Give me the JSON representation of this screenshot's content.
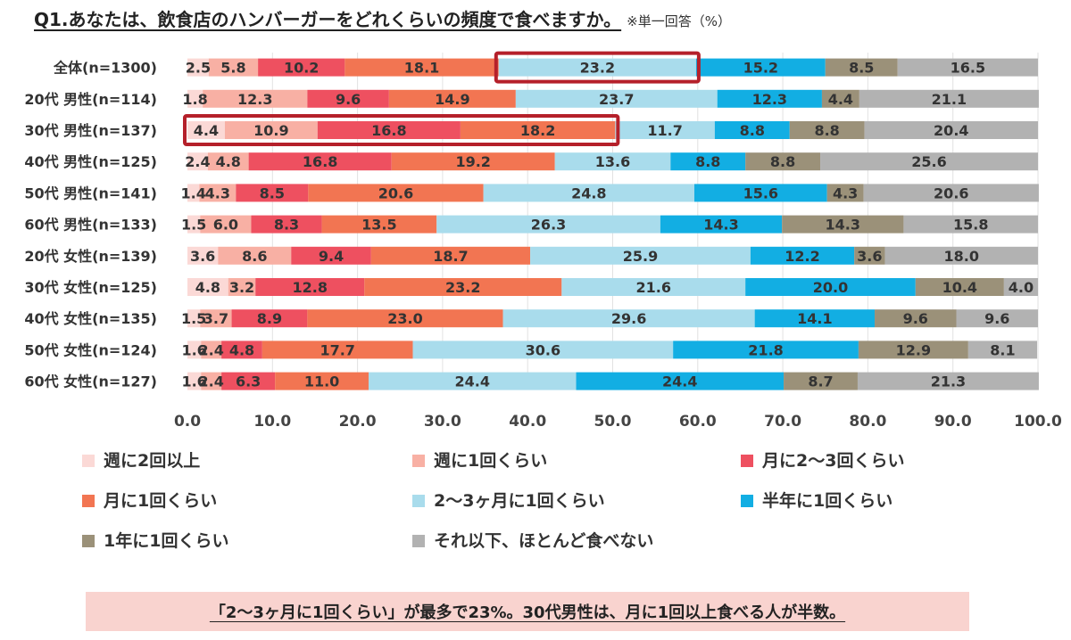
{
  "title": "Q1.あなたは、飲食店のハンバーガーをどれくらいの頻度で食べますか。",
  "note": "※単一回答（%）",
  "callout": "「2〜3ヶ月に1回くらい」が最多で23%。30代男性は、月に1回以上食べる人が半数。",
  "chart_data": {
    "type": "bar",
    "orientation": "horizontal",
    "stacked": true,
    "xlim": [
      0,
      100
    ],
    "xticks": [
      0,
      10,
      20,
      30,
      40,
      50,
      60,
      70,
      80,
      90,
      100
    ],
    "tick_labels": [
      "0.0",
      "10.0",
      "20.0",
      "30.0",
      "40.0",
      "50.0",
      "60.0",
      "70.0",
      "80.0",
      "90.0",
      "100.0"
    ],
    "categories": [
      "全体(n=1300)",
      "20代 男性(n=114)",
      "30代 男性(n=137)",
      "40代 男性(n=125)",
      "50代 男性(n=141)",
      "60代 男性(n=133)",
      "20代 女性(n=139)",
      "30代 女性(n=125)",
      "40代 女性(n=135)",
      "50代 女性(n=124)",
      "60代 女性(n=127)"
    ],
    "series": [
      {
        "name": "週に2回以上",
        "color": "#fbd9d6",
        "values": [
          2.5,
          1.8,
          4.4,
          2.4,
          1.4,
          1.5,
          3.6,
          4.8,
          1.5,
          1.6,
          1.6
        ]
      },
      {
        "name": "週に1回くらい",
        "color": "#f8b0a4",
        "values": [
          5.8,
          12.3,
          10.9,
          4.8,
          4.3,
          6.0,
          8.6,
          3.2,
          3.7,
          2.4,
          2.4
        ]
      },
      {
        "name": "月に2〜3回くらい",
        "color": "#ee5060",
        "values": [
          10.2,
          9.6,
          16.8,
          16.8,
          8.5,
          8.3,
          9.4,
          12.8,
          8.9,
          4.8,
          6.3
        ]
      },
      {
        "name": "月に1回くらい",
        "color": "#f27552",
        "values": [
          18.1,
          14.9,
          18.2,
          19.2,
          20.6,
          13.5,
          18.7,
          23.2,
          23.0,
          17.7,
          11.0
        ]
      },
      {
        "name": "2〜3ヶ月に1回くらい",
        "color": "#a9dcec",
        "values": [
          23.2,
          23.7,
          11.7,
          13.6,
          24.8,
          26.3,
          25.9,
          21.6,
          29.6,
          30.6,
          24.4
        ]
      },
      {
        "name": "半年に1回くらい",
        "color": "#12aee3",
        "values": [
          15.2,
          12.3,
          8.8,
          8.8,
          15.6,
          14.3,
          12.2,
          20.0,
          14.1,
          21.8,
          24.4
        ]
      },
      {
        "name": "1年に1回くらい",
        "color": "#9b9179",
        "values": [
          8.5,
          4.4,
          8.8,
          8.8,
          4.3,
          14.3,
          3.6,
          10.4,
          9.6,
          12.9,
          8.7
        ]
      },
      {
        "name": "それ以下、ほとんど食べない",
        "color": "#b2b2b2",
        "values": [
          16.5,
          21.1,
          20.4,
          25.6,
          20.6,
          15.8,
          18.0,
          4.0,
          9.6,
          8.1,
          21.3
        ]
      }
    ],
    "highlights": [
      {
        "category_index": 0,
        "from": 36.6,
        "to": 59.8
      },
      {
        "category_index": 2,
        "from": 0,
        "to": 50.3
      }
    ],
    "highlight_color": "#b5202a"
  }
}
